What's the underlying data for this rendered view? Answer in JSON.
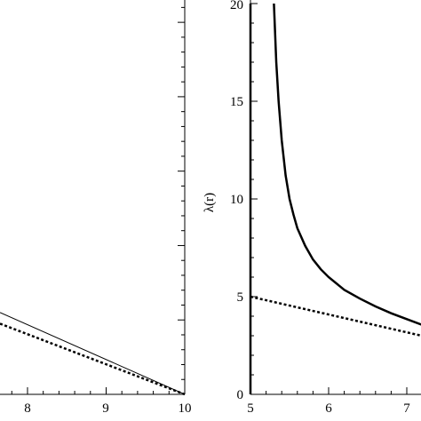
{
  "chart_data": [
    {
      "type": "line",
      "xlabel": "",
      "ylabel": "",
      "xlim": [
        7.65,
        10
      ],
      "ylim": [
        0,
        5.3
      ],
      "xticks": [
        8,
        9,
        10
      ],
      "tick_labels_x": [
        "8",
        "9",
        "10"
      ],
      "grid": false,
      "series": [
        {
          "style": "solid-thin",
          "x": [
            7.65,
            10
          ],
          "y": [
            1.1,
            0.0
          ]
        },
        {
          "style": "dashed",
          "x": [
            7.65,
            10
          ],
          "y": [
            0.95,
            0.0
          ]
        }
      ]
    },
    {
      "type": "line",
      "xlabel": "",
      "ylabel": "λ(r)",
      "xlim": [
        5,
        7.3
      ],
      "ylim": [
        0,
        20
      ],
      "xticks": [
        5,
        6,
        7
      ],
      "yticks": [
        0,
        5,
        10,
        15,
        20
      ],
      "tick_labels_x": [
        "5",
        "6",
        "7"
      ],
      "tick_labels_y": [
        "0",
        "5",
        "10",
        "15",
        "20"
      ],
      "grid": false,
      "series": [
        {
          "style": "solid-thick",
          "x": [
            5.3,
            5.33,
            5.36,
            5.4,
            5.45,
            5.5,
            5.55,
            5.6,
            5.7,
            5.8,
            5.9,
            6.0,
            6.2,
            6.4,
            6.6,
            6.8,
            7.0,
            7.2,
            7.3
          ],
          "y": [
            20,
            17.0,
            15.0,
            13.0,
            11.2,
            10.0,
            9.2,
            8.5,
            7.6,
            6.9,
            6.4,
            6.0,
            5.35,
            4.9,
            4.5,
            4.15,
            3.85,
            3.55,
            3.4
          ]
        },
        {
          "style": "solid-thick",
          "x": [
            5,
            5
          ],
          "y": [
            0,
            20
          ]
        },
        {
          "style": "dashed",
          "x": [
            5,
            7.3
          ],
          "y": [
            5.0,
            2.9
          ]
        }
      ]
    }
  ]
}
